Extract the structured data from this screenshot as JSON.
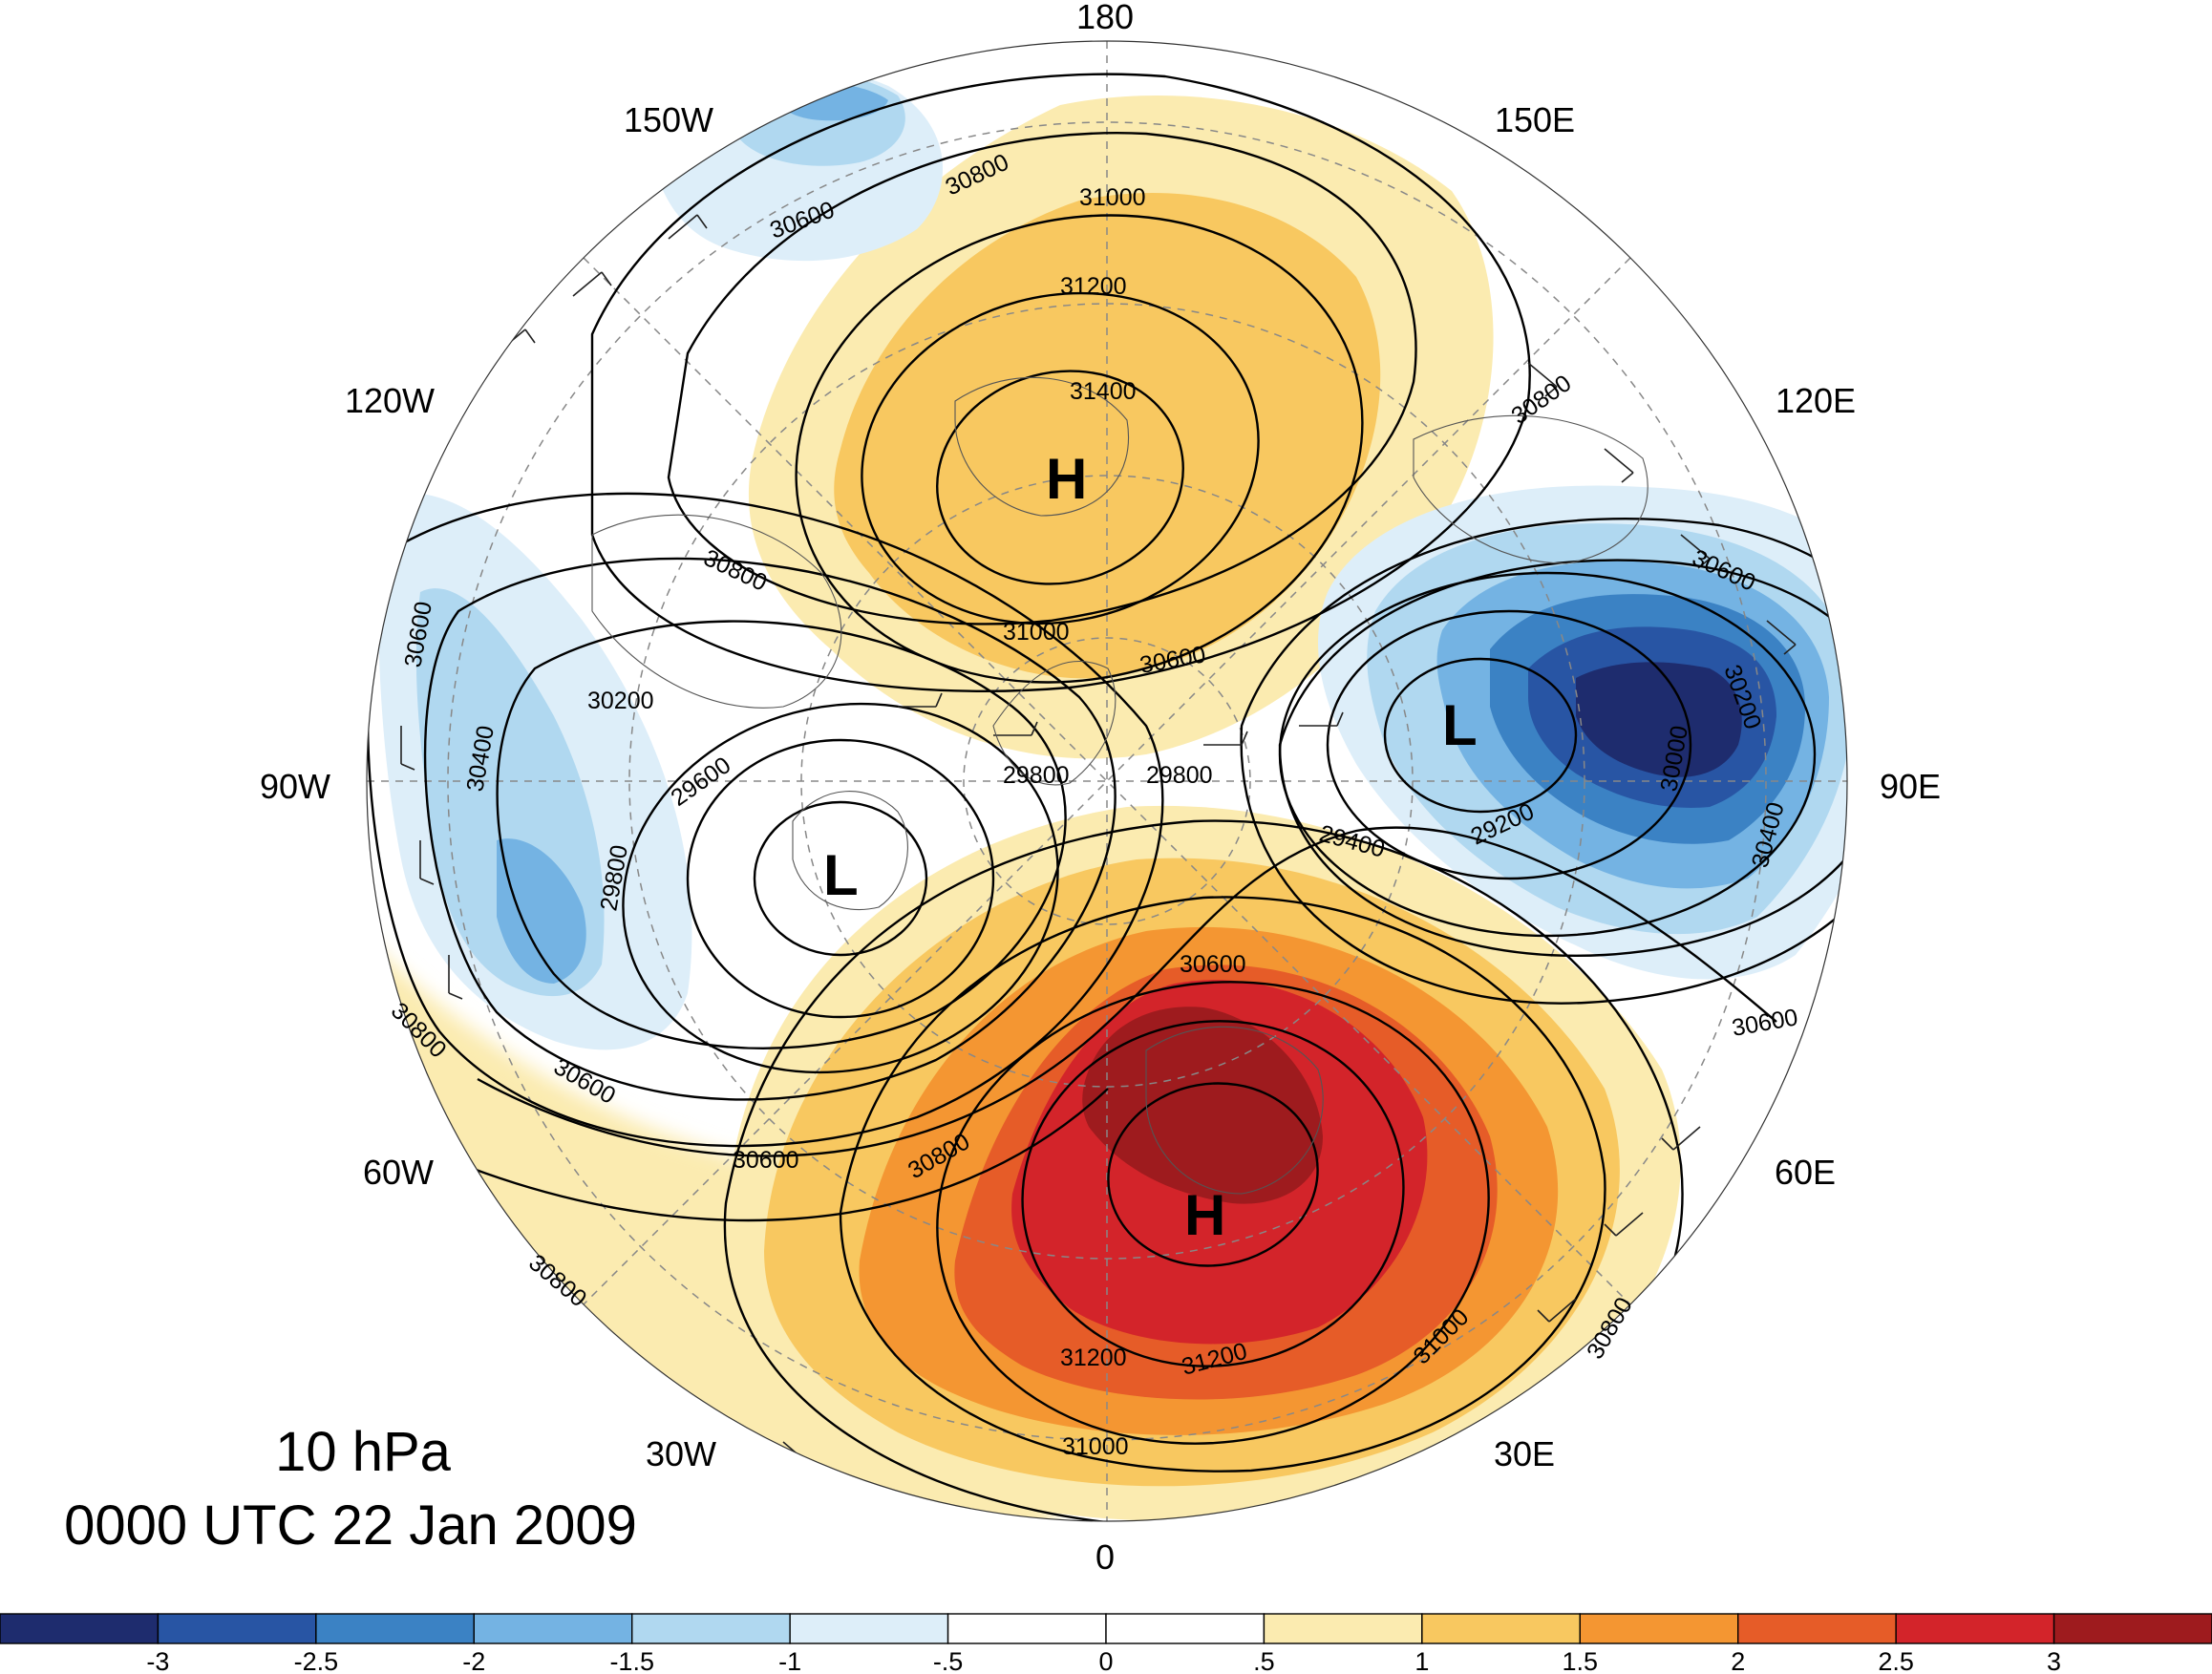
{
  "title": {
    "level": "10 hPa",
    "datetime": "0000 UTC 22 Jan 2009"
  },
  "longitude_labels": [
    {
      "lon": 180,
      "text": "180"
    },
    {
      "lon": 150,
      "text": "150E"
    },
    {
      "lon": 120,
      "text": "120E"
    },
    {
      "lon": 90,
      "text": "90E"
    },
    {
      "lon": 60,
      "text": "60E"
    },
    {
      "lon": 30,
      "text": "30E"
    },
    {
      "lon": 0,
      "text": "0"
    },
    {
      "lon": -30,
      "text": "30W"
    },
    {
      "lon": -60,
      "text": "60W"
    },
    {
      "lon": -90,
      "text": "90W"
    },
    {
      "lon": -120,
      "text": "120W"
    },
    {
      "lon": -150,
      "text": "150W"
    }
  ],
  "pressure_centers": [
    {
      "type": "H",
      "label": "H",
      "description": "high over Siberia / Arctic Pacific sector"
    },
    {
      "type": "H",
      "label": "H",
      "description": "high over Europe"
    },
    {
      "type": "L",
      "label": "L",
      "description": "low over Canada / Greenland"
    },
    {
      "type": "L",
      "label": "L",
      "description": "low over central Asia"
    }
  ],
  "contour_labels": [
    "30600",
    "30800",
    "31000",
    "31200",
    "31400",
    "30800",
    "31000",
    "30600",
    "30600",
    "30200",
    "30400",
    "29600",
    "29800",
    "29800",
    "29800",
    "30800",
    "30600",
    "30600",
    "30200",
    "30000",
    "30400",
    "29200",
    "29400",
    "30600",
    "30800",
    "30600",
    "30600",
    "30800",
    "31200",
    "31200",
    "31000",
    "31000",
    "30800",
    "30800"
  ],
  "colorbar": {
    "ticks": [
      "-3",
      "-2.5",
      "-2",
      "-1.5",
      "-1",
      "-.5",
      "0",
      ".5",
      "1",
      "1.5",
      "2",
      "2.5",
      "3"
    ],
    "colors": [
      "#1e2c6e",
      "#2855a4",
      "#3b82c4",
      "#74b3e3",
      "#b0d8f0",
      "#ddeef9",
      "#ffffff",
      "#ffffff",
      "#fbebb0",
      "#f8c860",
      "#f49632",
      "#e65c28",
      "#d3242a",
      "#9e1b1e"
    ]
  }
}
